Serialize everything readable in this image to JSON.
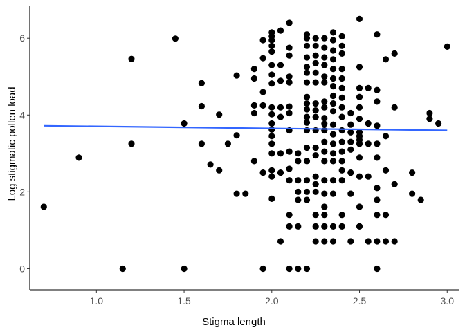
{
  "chart_data": {
    "type": "scatter",
    "title": "",
    "xlabel": "Stigma length",
    "ylabel": "Log stigmatic pollen load",
    "xlim": [
      0.62,
      3.07
    ],
    "ylim": [
      -0.55,
      6.85
    ],
    "xticks": [
      1.0,
      1.5,
      2.0,
      2.5,
      3.0
    ],
    "xtick_labels": [
      "1.0",
      "1.5",
      "2.0",
      "2.5",
      "3.0"
    ],
    "yticks": [
      0,
      2,
      4,
      6
    ],
    "ytick_labels": [
      "0",
      "2",
      "4",
      "6"
    ],
    "grid": false,
    "legend": "none",
    "colors": {
      "points": "#000000",
      "trend": "#3366ff",
      "axis": "#000000",
      "tick_text": "#4d4d4d"
    },
    "trend_line": {
      "type": "linear",
      "x": [
        0.7,
        3.0
      ],
      "y": [
        3.72,
        3.6
      ]
    },
    "points": [
      [
        0.7,
        1.61
      ],
      [
        0.9,
        2.89
      ],
      [
        1.15,
        0.0
      ],
      [
        1.2,
        5.46
      ],
      [
        1.2,
        3.25
      ],
      [
        1.45,
        5.99
      ],
      [
        1.5,
        3.78
      ],
      [
        1.5,
        0.0
      ],
      [
        1.6,
        4.83
      ],
      [
        1.6,
        4.23
      ],
      [
        1.6,
        3.25
      ],
      [
        1.65,
        2.71
      ],
      [
        1.7,
        4.01
      ],
      [
        1.7,
        2.56
      ],
      [
        1.75,
        3.25
      ],
      [
        1.8,
        5.03
      ],
      [
        1.8,
        3.47
      ],
      [
        1.8,
        1.95
      ],
      [
        1.85,
        1.95
      ],
      [
        1.9,
        5.2
      ],
      [
        1.9,
        4.95
      ],
      [
        1.9,
        4.25
      ],
      [
        1.9,
        4.05
      ],
      [
        1.9,
        2.8
      ],
      [
        1.95,
        5.95
      ],
      [
        1.95,
        5.48
      ],
      [
        1.95,
        4.6
      ],
      [
        1.95,
        4.25
      ],
      [
        1.95,
        2.5
      ],
      [
        1.95,
        0.0
      ],
      [
        2.0,
        6.15
      ],
      [
        2.0,
        6.05
      ],
      [
        2.0,
        5.95
      ],
      [
        2.0,
        5.8
      ],
      [
        2.0,
        5.65
      ],
      [
        2.0,
        5.3
      ],
      [
        2.0,
        5.05
      ],
      [
        2.0,
        4.82
      ],
      [
        2.0,
        4.2
      ],
      [
        2.0,
        4.02
      ],
      [
        2.0,
        3.78
      ],
      [
        2.0,
        3.62
      ],
      [
        2.0,
        3.45
      ],
      [
        2.0,
        3.25
      ],
      [
        2.0,
        3.0
      ],
      [
        2.0,
        2.56
      ],
      [
        2.0,
        2.4
      ],
      [
        2.0,
        1.82
      ],
      [
        2.05,
        6.2
      ],
      [
        2.05,
        5.3
      ],
      [
        2.05,
        4.89
      ],
      [
        2.05,
        4.2
      ],
      [
        2.05,
        3.95
      ],
      [
        2.05,
        3.0
      ],
      [
        2.05,
        2.5
      ],
      [
        2.05,
        0.71
      ],
      [
        2.1,
        6.4
      ],
      [
        2.1,
        5.75
      ],
      [
        2.1,
        5.55
      ],
      [
        2.1,
        5.0
      ],
      [
        2.1,
        4.85
      ],
      [
        2.1,
        4.22
      ],
      [
        2.1,
        4.05
      ],
      [
        2.1,
        3.6
      ],
      [
        2.1,
        3.05
      ],
      [
        2.1,
        2.6
      ],
      [
        2.1,
        2.3
      ],
      [
        2.1,
        1.4
      ],
      [
        2.1,
        1.1
      ],
      [
        2.1,
        0.0
      ],
      [
        2.15,
        3.0
      ],
      [
        2.15,
        2.8
      ],
      [
        2.15,
        2.3
      ],
      [
        2.15,
        2.0
      ],
      [
        2.15,
        1.79
      ],
      [
        2.15,
        1.1
      ],
      [
        2.15,
        0.0
      ],
      [
        2.2,
        6.1
      ],
      [
        2.2,
        6.0
      ],
      [
        2.2,
        5.8
      ],
      [
        2.2,
        5.5
      ],
      [
        2.2,
        5.25
      ],
      [
        2.2,
        5.1
      ],
      [
        2.2,
        4.85
      ],
      [
        2.2,
        4.47
      ],
      [
        2.2,
        4.3
      ],
      [
        2.2,
        4.15
      ],
      [
        2.2,
        3.95
      ],
      [
        2.2,
        3.8
      ],
      [
        2.2,
        3.6
      ],
      [
        2.2,
        3.15
      ],
      [
        2.2,
        2.8
      ],
      [
        2.2,
        2.3
      ],
      [
        2.2,
        2.0
      ],
      [
        2.2,
        1.79
      ],
      [
        2.2,
        0.0
      ],
      [
        2.25,
        6.0
      ],
      [
        2.25,
        5.8
      ],
      [
        2.25,
        5.55
      ],
      [
        2.25,
        5.35
      ],
      [
        2.25,
        5.1
      ],
      [
        2.25,
        4.85
      ],
      [
        2.25,
        4.3
      ],
      [
        2.25,
        4.12
      ],
      [
        2.25,
        3.95
      ],
      [
        2.25,
        3.6
      ],
      [
        2.25,
        3.15
      ],
      [
        2.25,
        2.95
      ],
      [
        2.25,
        2.4
      ],
      [
        2.25,
        2.2
      ],
      [
        2.25,
        2.0
      ],
      [
        2.25,
        1.4
      ],
      [
        2.25,
        1.1
      ],
      [
        2.25,
        0.71
      ],
      [
        2.3,
        6.0
      ],
      [
        2.3,
        5.75
      ],
      [
        2.3,
        5.5
      ],
      [
        2.3,
        5.3
      ],
      [
        2.3,
        5.0
      ],
      [
        2.3,
        4.85
      ],
      [
        2.3,
        4.35
      ],
      [
        2.3,
        4.2
      ],
      [
        2.3,
        3.92
      ],
      [
        2.3,
        3.77
      ],
      [
        2.3,
        3.6
      ],
      [
        2.3,
        3.3
      ],
      [
        2.3,
        3.05
      ],
      [
        2.3,
        2.8
      ],
      [
        2.3,
        2.3
      ],
      [
        2.3,
        1.95
      ],
      [
        2.3,
        1.61
      ],
      [
        2.3,
        1.4
      ],
      [
        2.3,
        1.1
      ],
      [
        2.3,
        0.71
      ],
      [
        2.35,
        6.15
      ],
      [
        2.35,
        5.95
      ],
      [
        2.35,
        5.68
      ],
      [
        2.35,
        5.45
      ],
      [
        2.35,
        5.2
      ],
      [
        2.35,
        4.95
      ],
      [
        2.35,
        4.75
      ],
      [
        2.35,
        4.5
      ],
      [
        2.35,
        4.3
      ],
      [
        2.35,
        4.1
      ],
      [
        2.35,
        3.75
      ],
      [
        2.35,
        3.5
      ],
      [
        2.35,
        3.25
      ],
      [
        2.35,
        3.0
      ],
      [
        2.35,
        2.8
      ],
      [
        2.35,
        2.3
      ],
      [
        2.35,
        1.95
      ],
      [
        2.35,
        1.1
      ],
      [
        2.35,
        0.71
      ],
      [
        2.4,
        6.05
      ],
      [
        2.4,
        5.8
      ],
      [
        2.4,
        5.6
      ],
      [
        2.4,
        5.2
      ],
      [
        2.4,
        4.95
      ],
      [
        2.4,
        4.7
      ],
      [
        2.4,
        4.45
      ],
      [
        2.4,
        4.2
      ],
      [
        2.4,
        3.95
      ],
      [
        2.4,
        3.6
      ],
      [
        2.4,
        3.3
      ],
      [
        2.4,
        3.05
      ],
      [
        2.4,
        2.8
      ],
      [
        2.4,
        2.56
      ],
      [
        2.4,
        2.3
      ],
      [
        2.4,
        1.4
      ],
      [
        2.4,
        1.1
      ],
      [
        2.45,
        4.05
      ],
      [
        2.45,
        3.75
      ],
      [
        2.45,
        3.55
      ],
      [
        2.45,
        3.3
      ],
      [
        2.45,
        3.1
      ],
      [
        2.45,
        2.5
      ],
      [
        2.45,
        1.95
      ],
      [
        2.45,
        0.71
      ],
      [
        2.5,
        6.5
      ],
      [
        2.5,
        5.25
      ],
      [
        2.5,
        4.7
      ],
      [
        2.5,
        4.47
      ],
      [
        2.5,
        4.2
      ],
      [
        2.5,
        3.9
      ],
      [
        2.5,
        3.55
      ],
      [
        2.5,
        3.45
      ],
      [
        2.5,
        3.35
      ],
      [
        2.5,
        3.25
      ],
      [
        2.5,
        2.89
      ],
      [
        2.5,
        2.4
      ],
      [
        2.5,
        1.61
      ],
      [
        2.5,
        1.1
      ],
      [
        2.55,
        4.7
      ],
      [
        2.55,
        3.78
      ],
      [
        2.55,
        3.25
      ],
      [
        2.55,
        2.4
      ],
      [
        2.55,
        0.71
      ],
      [
        2.6,
        6.1
      ],
      [
        2.6,
        4.65
      ],
      [
        2.6,
        4.35
      ],
      [
        2.6,
        3.72
      ],
      [
        2.6,
        3.25
      ],
      [
        2.6,
        2.89
      ],
      [
        2.6,
        2.1
      ],
      [
        2.6,
        1.79
      ],
      [
        2.6,
        1.4
      ],
      [
        2.6,
        0.71
      ],
      [
        2.6,
        0.0
      ],
      [
        2.65,
        5.45
      ],
      [
        2.65,
        3.45
      ],
      [
        2.65,
        2.56
      ],
      [
        2.65,
        1.4
      ],
      [
        2.65,
        0.71
      ],
      [
        2.7,
        5.6
      ],
      [
        2.7,
        4.2
      ],
      [
        2.7,
        2.2
      ],
      [
        2.7,
        0.71
      ],
      [
        2.8,
        2.5
      ],
      [
        2.8,
        1.95
      ],
      [
        2.85,
        1.79
      ],
      [
        2.9,
        4.05
      ],
      [
        2.9,
        3.9
      ],
      [
        2.95,
        3.78
      ],
      [
        3.0,
        5.78
      ]
    ]
  }
}
